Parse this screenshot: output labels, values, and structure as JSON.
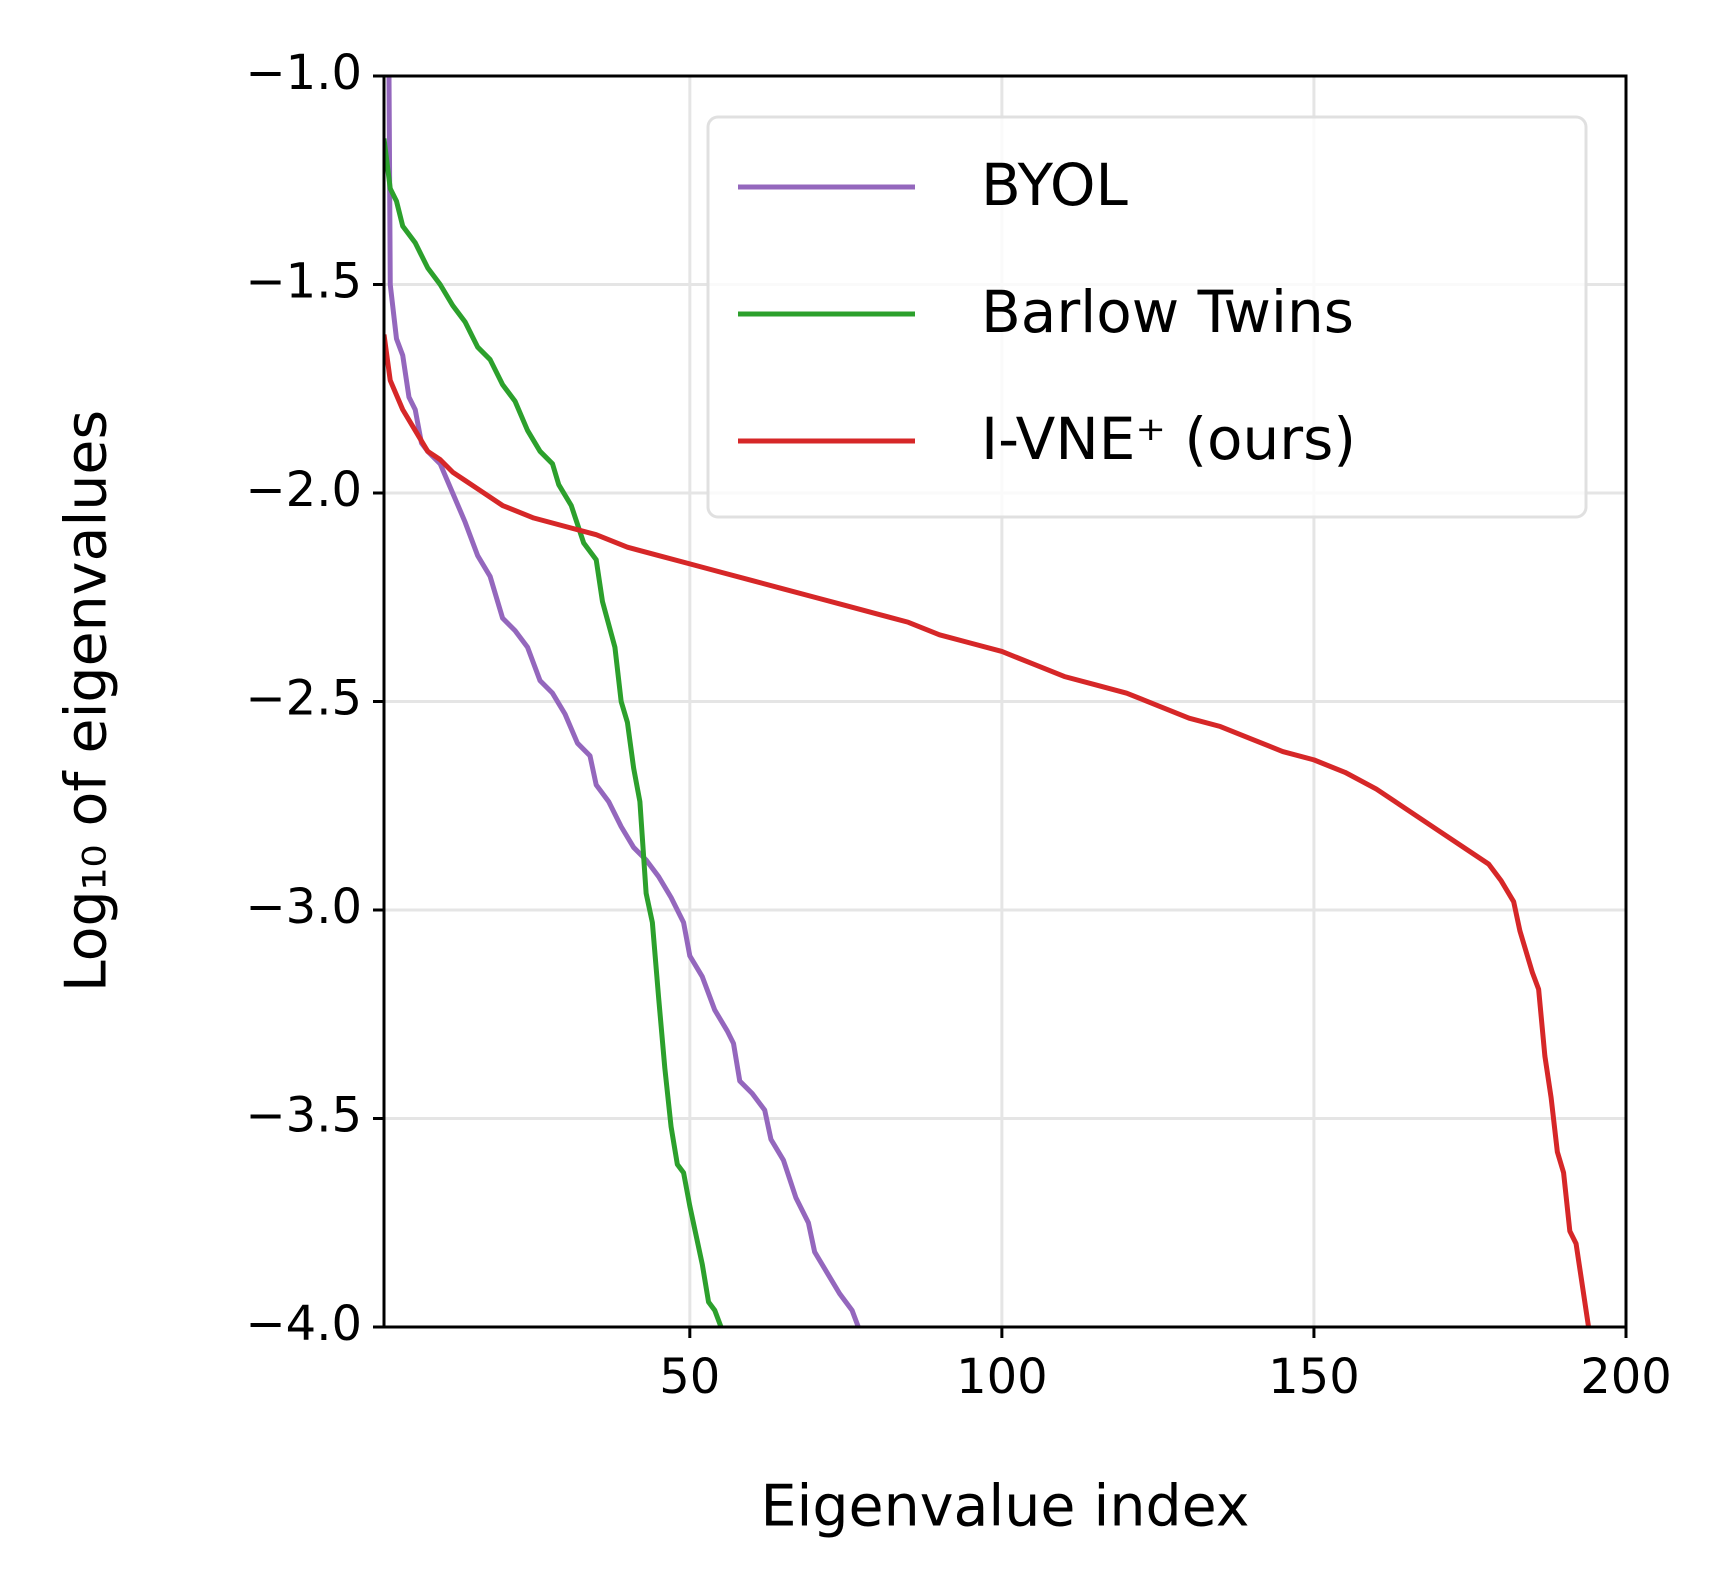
{
  "chart_data": {
    "type": "line",
    "xlabel": "Eigenvalue index",
    "ylabel": "Log₁₀ of eigenvalues",
    "xlim": [
      1,
      200
    ],
    "xticks": [
      50,
      100,
      150,
      200
    ],
    "ylim": [
      -4.0,
      -1.0
    ],
    "yticks": [
      {
        "value": -4.0,
        "label": "−4.0"
      },
      {
        "value": -3.5,
        "label": "−3.5"
      },
      {
        "value": -3.0,
        "label": "−3.0"
      },
      {
        "value": -2.5,
        "label": "−2.5"
      },
      {
        "value": -2.0,
        "label": "−2.0"
      },
      {
        "value": -1.5,
        "label": "−1.5"
      },
      {
        "value": -1.0,
        "label": "−1.0"
      }
    ],
    "grid": true,
    "legend": "upper right",
    "series": [
      {
        "name": "BYOL",
        "color": "#9467bd",
        "x": [
          1.8,
          2,
          3,
          4,
          5,
          6,
          7,
          8,
          10,
          12,
          14,
          16,
          18,
          20,
          22,
          24,
          26,
          28,
          30,
          32,
          34,
          35,
          37,
          39,
          41,
          43,
          45,
          47,
          49,
          50,
          52,
          54,
          56,
          57,
          58,
          60,
          62,
          63,
          65,
          67,
          69,
          70,
          72,
          74,
          76,
          77
        ],
        "values": [
          -1.0,
          -1.5,
          -1.63,
          -1.67,
          -1.77,
          -1.8,
          -1.88,
          -1.9,
          -1.93,
          -2.0,
          -2.07,
          -2.15,
          -2.2,
          -2.3,
          -2.33,
          -2.37,
          -2.45,
          -2.48,
          -2.53,
          -2.6,
          -2.63,
          -2.7,
          -2.74,
          -2.8,
          -2.85,
          -2.88,
          -2.92,
          -2.97,
          -3.03,
          -3.11,
          -3.16,
          -3.24,
          -3.29,
          -3.32,
          -3.41,
          -3.44,
          -3.48,
          -3.55,
          -3.6,
          -3.69,
          -3.75,
          -3.82,
          -3.87,
          -3.92,
          -3.96,
          -4.0
        ]
      },
      {
        "name": "Barlow Twins",
        "color": "#2ca02c",
        "x": [
          1,
          2,
          3,
          4,
          6,
          8,
          10,
          12,
          14,
          16,
          18,
          20,
          22,
          24,
          26,
          28,
          29,
          31,
          33,
          35,
          36,
          38,
          39,
          40,
          41,
          42,
          43,
          44,
          45,
          46,
          47,
          48,
          49,
          50,
          52,
          53,
          54,
          55
        ],
        "values": [
          -1.15,
          -1.27,
          -1.3,
          -1.36,
          -1.4,
          -1.46,
          -1.5,
          -1.55,
          -1.59,
          -1.65,
          -1.68,
          -1.74,
          -1.78,
          -1.85,
          -1.9,
          -1.93,
          -1.98,
          -2.03,
          -2.12,
          -2.16,
          -2.26,
          -2.37,
          -2.5,
          -2.55,
          -2.66,
          -2.74,
          -2.96,
          -3.03,
          -3.21,
          -3.38,
          -3.52,
          -3.61,
          -3.63,
          -3.71,
          -3.85,
          -3.94,
          -3.96,
          -4.0
        ]
      },
      {
        "name": "I-VNE⁺ (ours)",
        "color": "#d62728",
        "x": [
          1,
          2,
          4,
          6,
          8,
          10,
          12,
          14,
          16,
          20,
          25,
          30,
          35,
          40,
          45,
          50,
          55,
          60,
          65,
          70,
          75,
          80,
          85,
          90,
          95,
          100,
          105,
          110,
          115,
          120,
          125,
          130,
          135,
          140,
          145,
          150,
          155,
          160,
          165,
          170,
          175,
          178,
          180,
          182,
          183,
          184,
          185,
          186,
          187,
          188,
          189,
          190,
          191,
          192,
          193,
          194
        ],
        "values": [
          -1.62,
          -1.73,
          -1.8,
          -1.85,
          -1.9,
          -1.92,
          -1.95,
          -1.97,
          -1.99,
          -2.03,
          -2.06,
          -2.08,
          -2.1,
          -2.13,
          -2.15,
          -2.17,
          -2.19,
          -2.21,
          -2.23,
          -2.25,
          -2.27,
          -2.29,
          -2.31,
          -2.34,
          -2.36,
          -2.38,
          -2.41,
          -2.44,
          -2.46,
          -2.48,
          -2.51,
          -2.54,
          -2.56,
          -2.59,
          -2.62,
          -2.64,
          -2.67,
          -2.71,
          -2.76,
          -2.81,
          -2.86,
          -2.89,
          -2.93,
          -2.98,
          -3.05,
          -3.1,
          -3.15,
          -3.19,
          -3.35,
          -3.45,
          -3.58,
          -3.63,
          -3.77,
          -3.8,
          -3.9,
          -4.0
        ]
      }
    ]
  }
}
